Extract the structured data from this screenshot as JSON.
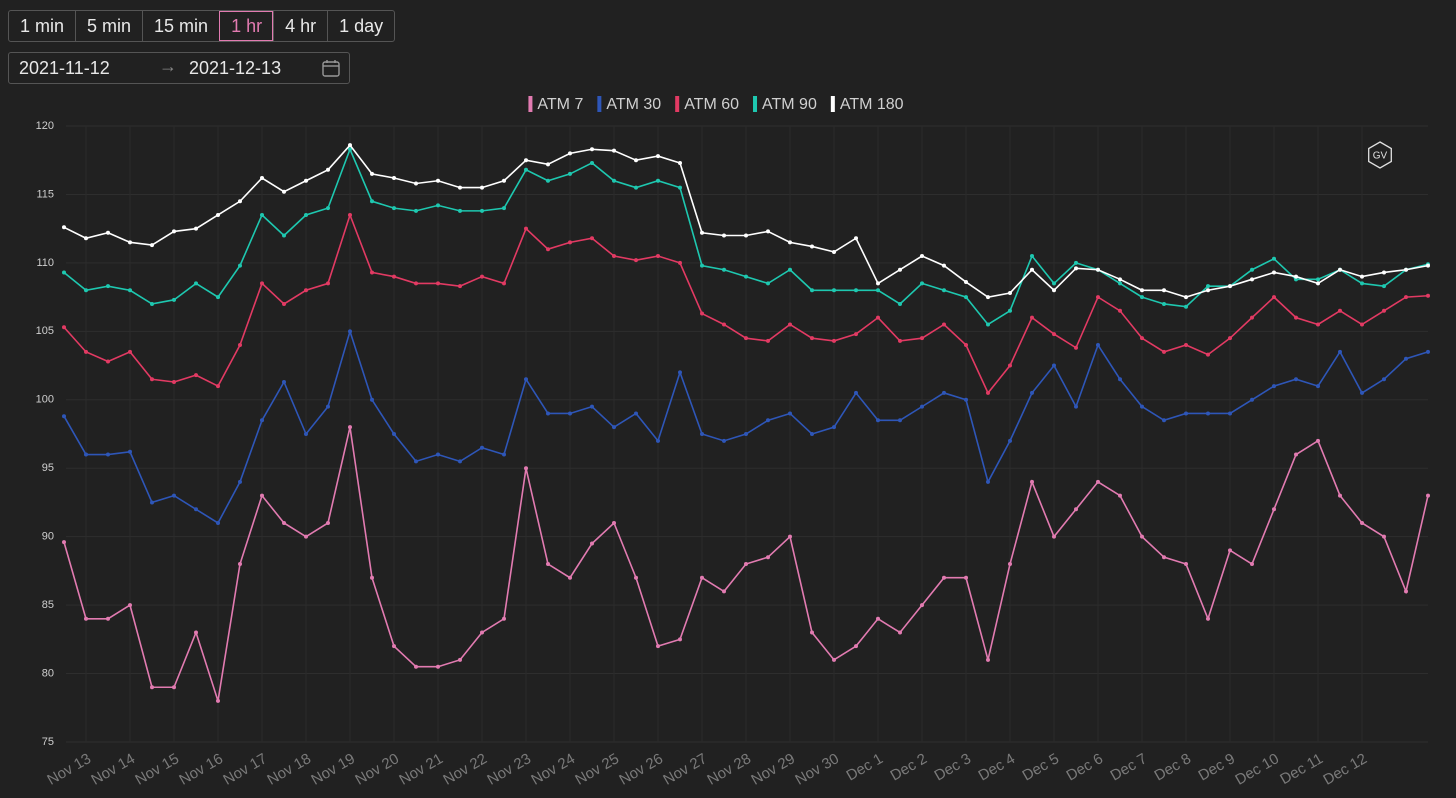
{
  "controls": {
    "intervals": [
      {
        "label": "1 min",
        "selected": false
      },
      {
        "label": "5 min",
        "selected": false
      },
      {
        "label": "15 min",
        "selected": false
      },
      {
        "label": "1 hr",
        "selected": true
      },
      {
        "label": "4 hr",
        "selected": false
      },
      {
        "label": "1 day",
        "selected": false
      }
    ],
    "date_start": "2021-11-12",
    "date_end": "2021-12-13"
  },
  "logo": "GV",
  "chart_data": {
    "type": "line",
    "categories": [
      null,
      "Nov 13",
      null,
      "Nov 14",
      null,
      "Nov 15",
      null,
      "Nov 16",
      null,
      "Nov 17",
      null,
      "Nov 18",
      null,
      "Nov 19",
      null,
      "Nov 20",
      null,
      "Nov 21",
      null,
      "Nov 22",
      null,
      "Nov 23",
      null,
      "Nov 24",
      null,
      "Nov 25",
      null,
      "Nov 26",
      null,
      "Nov 27",
      null,
      "Nov 28",
      null,
      "Nov 29",
      null,
      "Nov 30",
      null,
      "Dec 1",
      null,
      "Dec 2",
      null,
      "Dec 3",
      null,
      "Dec 4",
      null,
      "Dec 5",
      null,
      "Dec 6",
      null,
      "Dec 7",
      null,
      "Dec 8",
      null,
      "Dec 9",
      null,
      "Dec 10",
      null,
      "Dec 11",
      null,
      "Dec 12",
      null,
      null,
      null
    ],
    "series": [
      {
        "name": "ATM 7",
        "color": "#e27bb1",
        "values": [
          89.6,
          84,
          84,
          85,
          79,
          79,
          83,
          78,
          88,
          93,
          91,
          90,
          91,
          98,
          87,
          82,
          80.5,
          80.5,
          81,
          83,
          84,
          95,
          88,
          87,
          89.5,
          91,
          87,
          82,
          82.5,
          87,
          86,
          88,
          88.5,
          90,
          83,
          81,
          82,
          84,
          83,
          85,
          87,
          87,
          81,
          88,
          94,
          90,
          92,
          94,
          93,
          90,
          88.5,
          88,
          84,
          89,
          88,
          92,
          96,
          97,
          93,
          91,
          90,
          86,
          93
        ]
      },
      {
        "name": "ATM 30",
        "color": "#2e56b8",
        "values": [
          98.8,
          96,
          96,
          96.2,
          92.5,
          93,
          92,
          91,
          94,
          98.5,
          101.3,
          97.5,
          99.5,
          105,
          100,
          97.5,
          95.5,
          96,
          95.5,
          96.5,
          96,
          101.5,
          99,
          99,
          99.5,
          98,
          99,
          97,
          102,
          97.5,
          97,
          97.5,
          98.5,
          99,
          97.5,
          98,
          100.5,
          98.5,
          98.5,
          99.5,
          100.5,
          100,
          94,
          97,
          100.5,
          102.5,
          99.5,
          104,
          101.5,
          99.5,
          98.5,
          99,
          99,
          99,
          100,
          101,
          101.5,
          101,
          103.5,
          100.5,
          101.5,
          103,
          103.5
        ]
      },
      {
        "name": "ATM 60",
        "color": "#e23a63",
        "values": [
          105.3,
          103.5,
          102.8,
          103.5,
          101.5,
          101.3,
          101.8,
          101,
          104,
          108.5,
          107,
          108,
          108.5,
          113.5,
          109.3,
          109,
          108.5,
          108.5,
          108.3,
          109,
          108.5,
          112.5,
          111,
          111.5,
          111.8,
          110.5,
          110.2,
          110.5,
          110,
          106.3,
          105.5,
          104.5,
          104.3,
          105.5,
          104.5,
          104.3,
          104.8,
          106,
          104.3,
          104.5,
          105.5,
          104,
          100.5,
          102.5,
          106,
          104.8,
          103.8,
          107.5,
          106.5,
          104.5,
          103.5,
          104,
          103.3,
          104.5,
          106,
          107.5,
          106,
          105.5,
          106.5,
          105.5,
          106.5,
          107.5,
          107.6
        ]
      },
      {
        "name": "ATM 90",
        "color": "#1ec8b0",
        "values": [
          109.3,
          108,
          108.3,
          108,
          107,
          107.3,
          108.5,
          107.5,
          109.8,
          113.5,
          112,
          113.5,
          114,
          118.3,
          114.5,
          114,
          113.8,
          114.2,
          113.8,
          113.8,
          114,
          116.8,
          116,
          116.5,
          117.3,
          116,
          115.5,
          116,
          115.5,
          109.8,
          109.5,
          109,
          108.5,
          109.5,
          108,
          108,
          108,
          108,
          107,
          108.5,
          108,
          107.5,
          105.5,
          106.5,
          110.5,
          108.5,
          110,
          109.5,
          108.5,
          107.5,
          107,
          106.8,
          108.3,
          108.3,
          109.5,
          110.3,
          108.8,
          108.8,
          109.5,
          108.5,
          108.3,
          109.5,
          109.9
        ]
      },
      {
        "name": "ATM 180",
        "color": "#ffffff",
        "values": [
          112.6,
          111.8,
          112.2,
          111.5,
          111.3,
          112.3,
          112.5,
          113.5,
          114.5,
          116.2,
          115.2,
          116,
          116.8,
          118.6,
          116.5,
          116.2,
          115.8,
          116,
          115.5,
          115.5,
          116,
          117.5,
          117.2,
          118,
          118.3,
          118.2,
          117.5,
          117.8,
          117.3,
          112.2,
          112,
          112,
          112.3,
          111.5,
          111.2,
          110.8,
          111.8,
          108.5,
          109.5,
          110.5,
          109.8,
          108.6,
          107.5,
          107.8,
          109.5,
          108,
          109.6,
          109.5,
          108.8,
          108,
          108,
          107.5,
          108,
          108.3,
          108.8,
          109.3,
          109,
          108.5,
          109.5,
          109,
          109.3,
          109.5,
          109.8
        ]
      }
    ],
    "ylim": [
      75,
      120
    ],
    "yticks": [
      75,
      80,
      85,
      90,
      95,
      100,
      105,
      110,
      115,
      120
    ],
    "grid": true,
    "legend": "top"
  }
}
